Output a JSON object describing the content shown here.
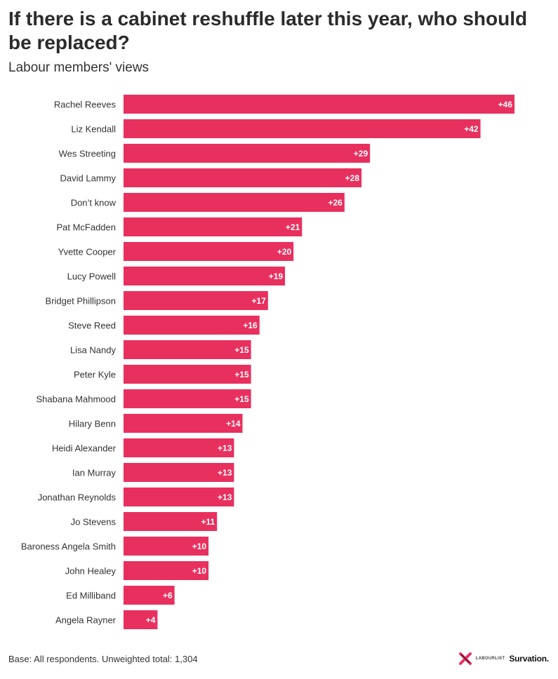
{
  "title": "If there is a cabinet reshuffle later this year, who should be replaced?",
  "subtitle": "Labour members' views",
  "footer": {
    "base_note": "Base: All respondents. Unweighted total: 1,304",
    "logo_labourlist": "LABOURLIST",
    "logo_survation": "Survation."
  },
  "colors": {
    "bar": "#e8305f",
    "accent_logo": "#e8305f"
  },
  "chart_data": {
    "type": "bar",
    "orientation": "horizontal",
    "title": "If there is a cabinet reshuffle later this year, who should be replaced?",
    "subtitle": "Labour members' views",
    "categories": [
      "Rachel Reeves",
      "Liz Kendall",
      "Wes Streeting",
      "David Lammy",
      "Don’t know",
      "Pat McFadden",
      "Yvette Cooper",
      "Lucy Powell",
      "Bridget Phillipson",
      "Steve Reed",
      "Lisa Nandy",
      "Peter Kyle",
      "Shabana Mahmood",
      "Hilary Benn",
      "Heidi Alexander",
      "Ian Murray",
      "Jonathan Reynolds",
      "Jo Stevens",
      "Baroness Angela Smith",
      "John Healey",
      "Ed Milliband",
      "Angela Rayner"
    ],
    "values": [
      46,
      42,
      29,
      28,
      26,
      21,
      20,
      19,
      17,
      16,
      15,
      15,
      15,
      14,
      13,
      13,
      13,
      11,
      10,
      10,
      6,
      4
    ],
    "value_labels": [
      "+46",
      "+42",
      "+29",
      "+28",
      "+26",
      "+21",
      "+20",
      "+19",
      "+17",
      "+16",
      "+15",
      "+15",
      "+15",
      "+14",
      "+13",
      "+13",
      "+13",
      "+11",
      "+10",
      "+10",
      "+6",
      "+4"
    ],
    "xlim": [
      0,
      46
    ],
    "grid": false,
    "legend": "none"
  }
}
